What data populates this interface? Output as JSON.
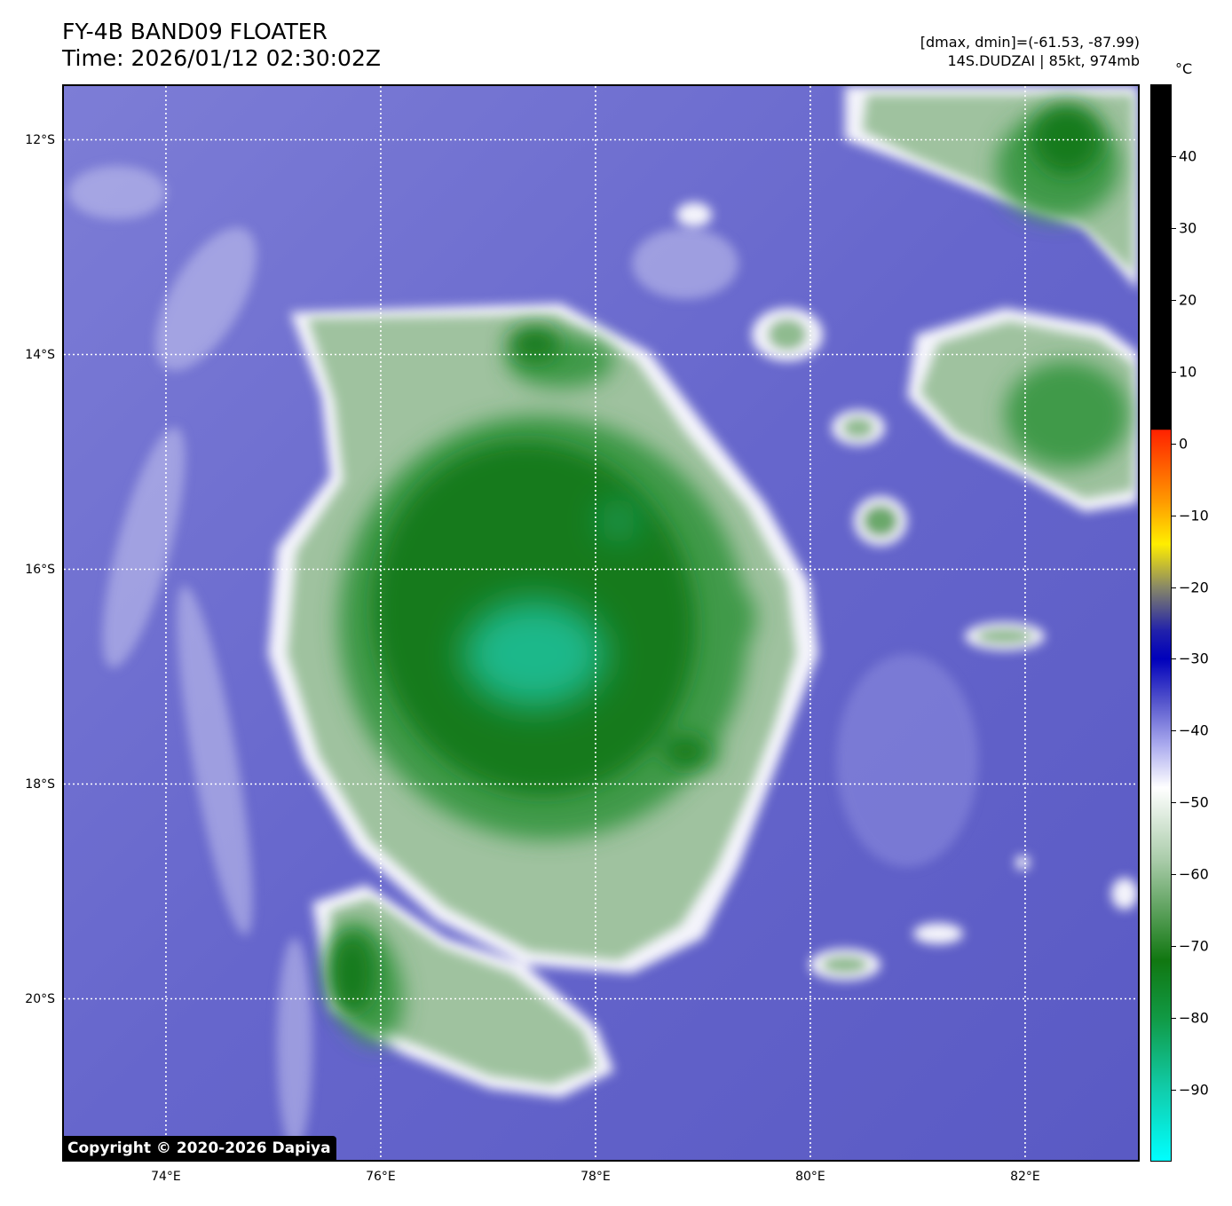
{
  "header": {
    "title": "FY-4B BAND09 FLOATER",
    "time": "Time: 2026/01/12 02:30:02Z",
    "range": "[dmax, dmin]=(-61.53, -87.99)",
    "storm": "14S.DUDZAI | 85kt, 974mb"
  },
  "colorbar": {
    "unit": "°C",
    "min": -100,
    "max": 50,
    "ticks": [
      "40",
      "30",
      "20",
      "10",
      "0",
      "−10",
      "−20",
      "−30",
      "−40",
      "−50",
      "−60",
      "−70",
      "−80",
      "−90"
    ],
    "tick_values": [
      40,
      30,
      20,
      10,
      0,
      -10,
      -20,
      -30,
      -40,
      -50,
      -60,
      -70,
      -80,
      -90
    ],
    "stops": [
      {
        "t": 50,
        "color": "#000000"
      },
      {
        "t": 2,
        "color": "#000000"
      },
      {
        "t": 1.9,
        "color": "#ff2200"
      },
      {
        "t": -8,
        "color": "#ff9900"
      },
      {
        "t": -14,
        "color": "#ffee00"
      },
      {
        "t": -20,
        "color": "#888866"
      },
      {
        "t": -26,
        "color": "#2222aa"
      },
      {
        "t": -30,
        "color": "#0000bb"
      },
      {
        "t": -36,
        "color": "#5555cc"
      },
      {
        "t": -42,
        "color": "#aaaaee"
      },
      {
        "t": -48,
        "color": "#ffffff"
      },
      {
        "t": -58,
        "color": "#aaccaa"
      },
      {
        "t": -72,
        "color": "#117711"
      },
      {
        "t": -80,
        "color": "#119944"
      },
      {
        "t": -90,
        "color": "#11ccaa"
      },
      {
        "t": -100,
        "color": "#00ffff"
      }
    ]
  },
  "map": {
    "lon_min": 73.05,
    "lon_max": 83.05,
    "lat_max": -11.5,
    "lat_min": -21.5,
    "lat_lines": [
      {
        "value": -12,
        "label": "12°S"
      },
      {
        "value": -14,
        "label": "14°S"
      },
      {
        "value": -16,
        "label": "16°S"
      },
      {
        "value": -18,
        "label": "18°S"
      },
      {
        "value": -20,
        "label": "20°S"
      }
    ],
    "lon_lines": [
      {
        "value": 74,
        "label": "74°E"
      },
      {
        "value": 76,
        "label": "76°E"
      },
      {
        "value": 78,
        "label": "78°E"
      },
      {
        "value": 80,
        "label": "80°E"
      },
      {
        "value": 82,
        "label": "82°E"
      }
    ],
    "background_color": "#6a6ad0",
    "cloud_colors": {
      "edge": "#f4f4fb",
      "outer": "#9fc29f",
      "mid": "#3f9a4a",
      "deep": "#127a1c",
      "core": "#1fb88a"
    },
    "copyright": "Copyright © 2020-2026 Dapiya"
  }
}
